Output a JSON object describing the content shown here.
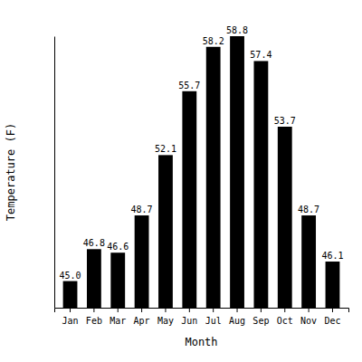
{
  "chart_data": {
    "type": "bar",
    "x_label": "Month",
    "y_label": "Temperature (F)",
    "categories": [
      "Jan",
      "Feb",
      "Mar",
      "Apr",
      "May",
      "Jun",
      "Jul",
      "Aug",
      "Sep",
      "Oct",
      "Nov",
      "Dec"
    ],
    "values": [
      45.0,
      46.8,
      46.6,
      48.7,
      52.1,
      55.7,
      58.2,
      58.8,
      57.4,
      53.7,
      48.7,
      46.1
    ],
    "value_labels": [
      "45.0",
      "46.8",
      "46.6",
      "48.7",
      "52.1",
      "55.7",
      "58.2",
      "58.8",
      "57.4",
      "53.7",
      "48.7",
      "46.1"
    ],
    "color": "#000000",
    "ylim": [
      43.5,
      58.8
    ],
    "yticks": [],
    "grid": false,
    "data_labels": true,
    "tick_labels": "x"
  }
}
